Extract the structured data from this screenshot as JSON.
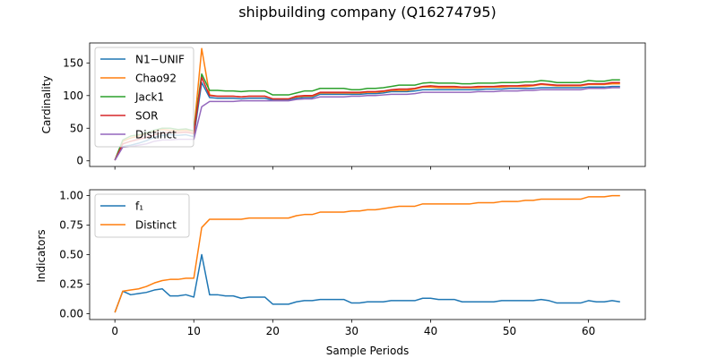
{
  "figure": {
    "title": "shipbuilding company (Q16274795)",
    "xlabel": "Sample Periods"
  },
  "chart_data": [
    {
      "type": "line",
      "ylabel": "Cardinality",
      "xlim": [
        -3.2,
        67.2
      ],
      "ylim": [
        -8.6,
        180.6
      ],
      "xticks": [
        0,
        10,
        20,
        30,
        40,
        50,
        60
      ],
      "yticks": [
        0,
        50,
        100,
        150
      ],
      "ytick_labels": [
        "0",
        "50",
        "100",
        "150"
      ],
      "legend": "top-left",
      "x": [
        0,
        1,
        2,
        3,
        4,
        5,
        6,
        7,
        8,
        9,
        10,
        11,
        12,
        13,
        14,
        15,
        16,
        17,
        18,
        19,
        20,
        21,
        22,
        23,
        24,
        25,
        26,
        27,
        28,
        29,
        30,
        31,
        32,
        33,
        34,
        35,
        36,
        37,
        38,
        39,
        40,
        41,
        42,
        43,
        44,
        45,
        46,
        47,
        48,
        49,
        50,
        51,
        52,
        53,
        54,
        55,
        56,
        57,
        58,
        59,
        60,
        61,
        62,
        63,
        64
      ],
      "series": [
        {
          "name": "N1−UNIF",
          "color": "#1f77b4",
          "values": [
            1,
            22,
            24,
            27,
            31,
            36,
            39,
            40,
            39,
            40,
            37,
            120,
            97,
            96,
            96,
            96,
            95,
            96,
            96,
            96,
            93,
            93,
            93,
            96,
            97,
            97,
            102,
            102,
            102,
            102,
            102,
            102,
            103,
            103,
            104,
            106,
            106,
            106,
            107,
            109,
            109,
            109,
            109,
            109,
            109,
            109,
            109,
            110,
            110,
            110,
            111,
            111,
            111,
            111,
            112,
            112,
            112,
            112,
            112,
            112,
            113,
            113,
            113,
            114,
            114
          ]
        },
        {
          "name": "Chao92",
          "color": "#ff7f0e",
          "values": [
            1,
            30,
            35,
            38,
            42,
            46,
            48,
            47,
            46,
            47,
            45,
            172,
            101,
            99,
            99,
            99,
            98,
            99,
            99,
            99,
            95,
            95,
            95,
            98,
            99,
            99,
            104,
            104,
            104,
            104,
            104,
            104,
            105,
            105,
            106,
            108,
            108,
            108,
            110,
            113,
            113,
            112,
            112,
            112,
            112,
            112,
            112,
            113,
            113,
            113,
            114,
            114,
            114,
            115,
            117,
            116,
            115,
            115,
            115,
            115,
            117,
            117,
            117,
            118,
            118
          ]
        },
        {
          "name": "Jack1",
          "color": "#2ca02c",
          "values": [
            1,
            32,
            38,
            40,
            43,
            47,
            50,
            50,
            48,
            49,
            46,
            133,
            108,
            108,
            107,
            107,
            106,
            107,
            107,
            107,
            101,
            101,
            101,
            104,
            107,
            107,
            111,
            111,
            111,
            111,
            109,
            109,
            111,
            111,
            112,
            114,
            116,
            116,
            116,
            119,
            120,
            119,
            119,
            119,
            118,
            118,
            119,
            119,
            119,
            120,
            120,
            120,
            121,
            121,
            123,
            122,
            120,
            120,
            120,
            120,
            123,
            122,
            122,
            124,
            124
          ]
        },
        {
          "name": "SOR",
          "color": "#d62728",
          "values": [
            1,
            26,
            30,
            33,
            36,
            40,
            43,
            44,
            43,
            44,
            42,
            128,
            100,
            99,
            99,
            99,
            98,
            99,
            99,
            99,
            95,
            95,
            95,
            99,
            100,
            100,
            105,
            105,
            105,
            105,
            105,
            105,
            106,
            106,
            107,
            109,
            110,
            110,
            111,
            114,
            115,
            114,
            114,
            114,
            113,
            113,
            114,
            114,
            114,
            115,
            115,
            115,
            116,
            116,
            118,
            117,
            116,
            116,
            116,
            116,
            118,
            118,
            118,
            120,
            120
          ]
        },
        {
          "name": "Distinct",
          "color": "#9467bd",
          "values": [
            1,
            21,
            22,
            24,
            26,
            30,
            32,
            32,
            33,
            33,
            33,
            83,
            91,
            91,
            91,
            91,
            92,
            92,
            92,
            92,
            92,
            92,
            92,
            94,
            95,
            95,
            98,
            98,
            98,
            98,
            99,
            99,
            100,
            100,
            101,
            102,
            102,
            102,
            103,
            105,
            105,
            105,
            105,
            105,
            105,
            105,
            106,
            106,
            106,
            107,
            107,
            107,
            108,
            108,
            109,
            109,
            109,
            109,
            109,
            109,
            111,
            111,
            111,
            112,
            112
          ]
        }
      ]
    },
    {
      "type": "line",
      "ylabel": "Indicators",
      "xlim": [
        -3.2,
        67.2
      ],
      "ylim": [
        -0.05,
        1.05
      ],
      "xticks": [
        0,
        10,
        20,
        30,
        40,
        50,
        60
      ],
      "xtick_labels": [
        "0",
        "10",
        "20",
        "30",
        "40",
        "50",
        "60"
      ],
      "yticks": [
        0.0,
        0.25,
        0.5,
        0.75,
        1.0
      ],
      "ytick_labels": [
        "0.00",
        "0.25",
        "0.50",
        "0.75",
        "1.00"
      ],
      "legend": "top-left",
      "x": [
        0,
        1,
        2,
        3,
        4,
        5,
        6,
        7,
        8,
        9,
        10,
        11,
        12,
        13,
        14,
        15,
        16,
        17,
        18,
        19,
        20,
        21,
        22,
        23,
        24,
        25,
        26,
        27,
        28,
        29,
        30,
        31,
        32,
        33,
        34,
        35,
        36,
        37,
        38,
        39,
        40,
        41,
        42,
        43,
        44,
        45,
        46,
        47,
        48,
        49,
        50,
        51,
        52,
        53,
        54,
        55,
        56,
        57,
        58,
        59,
        60,
        61,
        62,
        63,
        64
      ],
      "series": [
        {
          "name": "f₁",
          "color": "#1f77b4",
          "values": [
            0.01,
            0.19,
            0.16,
            0.17,
            0.18,
            0.2,
            0.21,
            0.15,
            0.15,
            0.16,
            0.14,
            0.5,
            0.16,
            0.16,
            0.15,
            0.15,
            0.13,
            0.14,
            0.14,
            0.14,
            0.08,
            0.08,
            0.08,
            0.1,
            0.11,
            0.11,
            0.12,
            0.12,
            0.12,
            0.12,
            0.09,
            0.09,
            0.1,
            0.1,
            0.1,
            0.11,
            0.11,
            0.11,
            0.11,
            0.13,
            0.13,
            0.12,
            0.12,
            0.12,
            0.1,
            0.1,
            0.1,
            0.1,
            0.1,
            0.11,
            0.11,
            0.11,
            0.11,
            0.11,
            0.12,
            0.11,
            0.09,
            0.09,
            0.09,
            0.09,
            0.11,
            0.1,
            0.1,
            0.11,
            0.1
          ]
        },
        {
          "name": "Distinct",
          "color": "#ff7f0e",
          "values": [
            0.01,
            0.19,
            0.2,
            0.21,
            0.23,
            0.26,
            0.28,
            0.29,
            0.29,
            0.3,
            0.3,
            0.73,
            0.8,
            0.8,
            0.8,
            0.8,
            0.8,
            0.81,
            0.81,
            0.81,
            0.81,
            0.81,
            0.81,
            0.83,
            0.84,
            0.84,
            0.86,
            0.86,
            0.86,
            0.86,
            0.87,
            0.87,
            0.88,
            0.88,
            0.89,
            0.9,
            0.91,
            0.91,
            0.91,
            0.93,
            0.93,
            0.93,
            0.93,
            0.93,
            0.93,
            0.93,
            0.94,
            0.94,
            0.94,
            0.95,
            0.95,
            0.95,
            0.96,
            0.96,
            0.97,
            0.97,
            0.97,
            0.97,
            0.97,
            0.97,
            0.99,
            0.99,
            0.99,
            1.0,
            1.0
          ]
        }
      ]
    }
  ]
}
